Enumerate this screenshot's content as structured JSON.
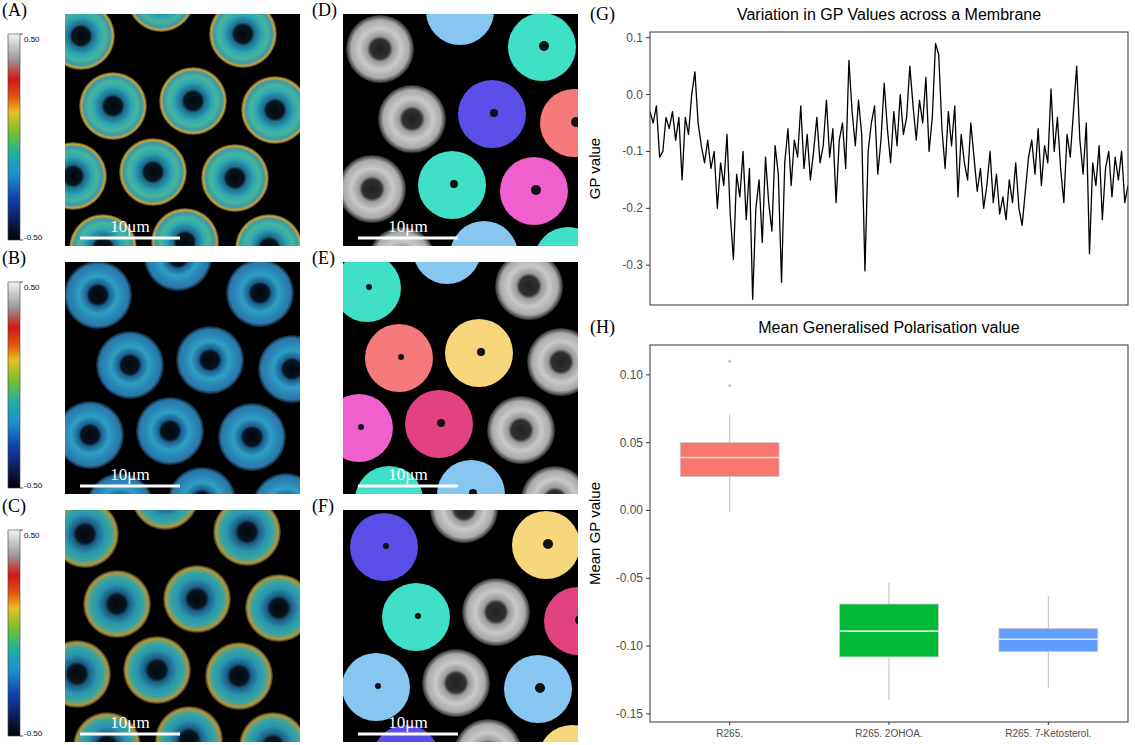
{
  "image_panels": [
    {
      "letter": "(A)",
      "scale_bar": "10μm",
      "colorbar": {
        "range": [
          -0.5,
          0.5
        ],
        "ticks": [
          {
            "value": 0.5,
            "label": "0.50"
          },
          {
            "value": -0.5,
            "label": "-0.50"
          }
        ]
      }
    },
    {
      "letter": "(B)",
      "scale_bar": "10μm",
      "colorbar": {
        "range": [
          -0.5,
          0.5
        ],
        "ticks": [
          {
            "value": 0.5,
            "label": "0.50"
          },
          {
            "value": -0.5,
            "label": "-0.50"
          }
        ]
      }
    },
    {
      "letter": "(C)",
      "scale_bar": "10μm",
      "colorbar": {
        "range": [
          -0.5,
          0.5
        ],
        "ticks": [
          {
            "value": 0.5,
            "label": "0.50"
          },
          {
            "value": -0.5,
            "label": "-0.50"
          }
        ]
      }
    },
    {
      "letter": "(D)",
      "scale_bar": "10μm"
    },
    {
      "letter": "(E)",
      "scale_bar": "10μm"
    },
    {
      "letter": "(F)",
      "scale_bar": "10μm"
    }
  ],
  "chart_data": [
    {
      "type": "line",
      "letter": "(G)",
      "title": "Variation in GP Values across a Membrane",
      "y_label": "GP value",
      "color": "#000000",
      "grid": false,
      "tick_labels": "y",
      "xlim": [
        0,
        149
      ],
      "ylim": [
        -0.37,
        0.11
      ],
      "yticks": [
        -0.3,
        -0.2,
        -0.1,
        {
          "value": 0,
          "label": "0.0"
        },
        0.1
      ],
      "values": [
        -0.03,
        -0.05,
        -0.02,
        -0.11,
        -0.1,
        -0.04,
        -0.06,
        -0.03,
        -0.08,
        -0.04,
        -0.15,
        -0.04,
        -0.07,
        0.0,
        0.04,
        -0.05,
        -0.09,
        -0.12,
        -0.08,
        -0.13,
        -0.1,
        -0.2,
        -0.12,
        -0.16,
        -0.07,
        -0.21,
        -0.29,
        -0.14,
        -0.18,
        -0.1,
        -0.22,
        -0.13,
        -0.36,
        -0.2,
        -0.15,
        -0.26,
        -0.11,
        -0.19,
        -0.24,
        -0.09,
        -0.14,
        -0.33,
        -0.12,
        -0.06,
        -0.16,
        -0.08,
        -0.11,
        -0.02,
        -0.13,
        -0.07,
        -0.15,
        -0.1,
        -0.04,
        -0.12,
        -0.09,
        -0.01,
        -0.11,
        -0.06,
        -0.19,
        -0.08,
        -0.05,
        -0.13,
        0.06,
        -0.03,
        -0.09,
        -0.01,
        -0.07,
        -0.31,
        -0.1,
        -0.05,
        -0.02,
        -0.14,
        -0.08,
        0.02,
        -0.06,
        -0.12,
        -0.03,
        -0.09,
        0.0,
        -0.07,
        -0.04,
        0.05,
        -0.02,
        -0.08,
        -0.01,
        -0.05,
        0.03,
        -0.1,
        -0.04,
        0.09,
        0.07,
        -0.06,
        -0.13,
        -0.03,
        -0.09,
        -0.02,
        -0.18,
        -0.07,
        -0.12,
        -0.15,
        -0.05,
        -0.11,
        -0.17,
        -0.13,
        -0.2,
        -0.16,
        -0.1,
        -0.19,
        -0.14,
        -0.21,
        -0.18,
        -0.22,
        -0.15,
        -0.19,
        -0.12,
        -0.2,
        -0.23,
        -0.17,
        -0.11,
        -0.08,
        -0.14,
        -0.06,
        -0.16,
        -0.09,
        -0.12,
        0.01,
        -0.1,
        -0.04,
        -0.13,
        -0.19,
        -0.07,
        -0.11,
        -0.03,
        0.05,
        -0.08,
        -0.14,
        -0.05,
        -0.28,
        -0.12,
        -0.16,
        -0.09,
        -0.22,
        -0.13,
        -0.1,
        -0.18,
        -0.11,
        -0.15,
        -0.1,
        -0.19,
        -0.16
      ]
    },
    {
      "type": "box",
      "letter": "(H)",
      "title": "Mean Generalised Polarisation value",
      "y_label": "Mean GP value",
      "grid": false,
      "categories": [
        "R265.",
        "R265. 2OHOA.",
        "R265. 7-Ketosterol."
      ],
      "colors": [
        "#f8766d",
        "#00ba38",
        "#619cff"
      ],
      "ylim": [
        -0.156,
        0.122
      ],
      "yticks": [
        {
          "value": -0.15,
          "label": "-0.15"
        },
        {
          "value": -0.1,
          "label": "-0.10"
        },
        {
          "value": -0.05,
          "label": "-0.05"
        },
        {
          "value": 0,
          "label": "0.00"
        },
        {
          "value": 0.05,
          "label": "0.05"
        },
        {
          "value": 0.1,
          "label": "0.10"
        }
      ],
      "boxes": [
        {
          "min": -0.001,
          "q1": 0.025,
          "median": 0.039,
          "q3": 0.05,
          "max": 0.071,
          "outliers": [
            0.092,
            0.11
          ]
        },
        {
          "min": -0.14,
          "q1": -0.108,
          "median": -0.089,
          "q3": -0.069,
          "max": -0.053,
          "outliers": []
        },
        {
          "min": -0.131,
          "q1": -0.104,
          "median": -0.095,
          "q3": -0.087,
          "max": -0.063,
          "outliers": []
        }
      ]
    }
  ]
}
